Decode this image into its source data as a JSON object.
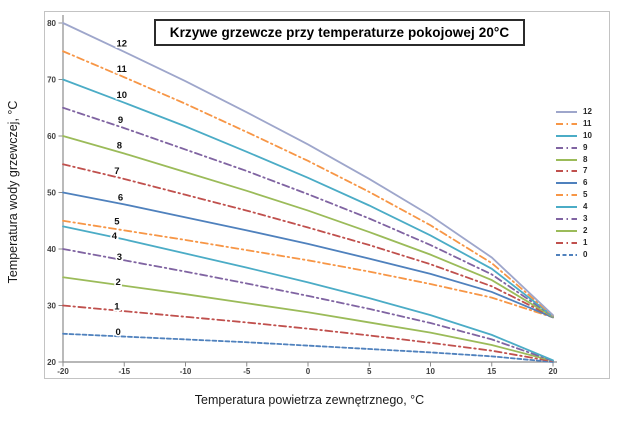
{
  "chart_data": {
    "type": "line",
    "title": "Krzywe grzewcze przy temperaturze pokojowej 20°C",
    "xlabel": "Temperatura powietrza zewnętrznego, °C",
    "ylabel": "Temperatura wody grzewczej, °C",
    "grid": false,
    "legend_position": "right",
    "xlim": [
      -20,
      20
    ],
    "ylim": [
      20,
      80
    ],
    "x_ticks": [
      -20,
      -15,
      -10,
      -5,
      0,
      5,
      10,
      15,
      20
    ],
    "y_ticks": [
      20,
      30,
      40,
      50,
      60,
      70,
      80
    ],
    "x": [
      -20,
      -15,
      -10,
      -5,
      0,
      5,
      10,
      15,
      20
    ],
    "series": [
      {
        "name": "12",
        "color": "#9EA6CB",
        "style": "solid",
        "label_pos": [
          -15.2,
          76.4
        ],
        "values": [
          80,
          74.9,
          69.7,
          64.2,
          58.5,
          52.4,
          45.9,
          38.5,
          28.3
        ]
      },
      {
        "name": "11",
        "color": "#F79646",
        "style": "dashdot",
        "label_pos": [
          -15.2,
          71.9
        ],
        "values": [
          75,
          70.4,
          65.7,
          60.7,
          55.6,
          50.1,
          44.2,
          37.5,
          28.2
        ]
      },
      {
        "name": "10",
        "color": "#4BACC6",
        "style": "solid",
        "label_pos": [
          -15.2,
          67.3
        ],
        "values": [
          70,
          65.9,
          61.7,
          57.2,
          52.6,
          47.7,
          42.4,
          36.5,
          28.1
        ]
      },
      {
        "name": "9",
        "color": "#8064A2",
        "style": "dashdot",
        "label_pos": [
          -15.3,
          62.8
        ],
        "values": [
          65,
          61.4,
          57.6,
          53.8,
          49.7,
          45.4,
          40.7,
          35.5,
          28.1
        ]
      },
      {
        "name": "8",
        "color": "#9BBB59",
        "style": "solid",
        "label_pos": [
          -15.4,
          58.3
        ],
        "values": [
          60,
          56.9,
          53.6,
          50.3,
          46.8,
          43.0,
          39.0,
          34.5,
          28.0
        ]
      },
      {
        "name": "7",
        "color": "#C0504D",
        "style": "dashdot",
        "label_pos": [
          -15.6,
          53.8
        ],
        "values": [
          55,
          52.4,
          49.6,
          46.8,
          43.8,
          40.7,
          37.3,
          33.4,
          28.0
        ]
      },
      {
        "name": "6",
        "color": "#4F81BD",
        "style": "solid",
        "label_pos": [
          -15.3,
          49.1
        ],
        "values": [
          50,
          47.9,
          45.6,
          43.3,
          40.9,
          38.3,
          35.6,
          32.4,
          27.9
        ]
      },
      {
        "name": "5",
        "color": "#F79646",
        "style": "dashdot",
        "label_pos": [
          -15.6,
          44.9
        ],
        "values": [
          45,
          43.3,
          41.6,
          39.8,
          38.0,
          36.0,
          33.8,
          31.4,
          27.9
        ]
      },
      {
        "name": "4",
        "color": "#4BACC6",
        "style": "solid",
        "label_pos": [
          -15.8,
          42.3
        ],
        "values": [
          44,
          41.7,
          39.2,
          36.7,
          34.1,
          31.3,
          28.3,
          24.8,
          20.3
        ]
      },
      {
        "name": "3",
        "color": "#8064A2",
        "style": "dashdot",
        "label_pos": [
          -15.4,
          38.6
        ],
        "values": [
          40,
          38.0,
          36.0,
          33.9,
          31.7,
          29.4,
          26.9,
          24.0,
          20.2
        ]
      },
      {
        "name": "2",
        "color": "#9BBB59",
        "style": "solid",
        "label_pos": [
          -15.5,
          34.2
        ],
        "values": [
          35,
          33.5,
          32.0,
          30.4,
          28.8,
          27.0,
          25.2,
          23.0,
          20.2
        ]
      },
      {
        "name": "1",
        "color": "#C0504D",
        "style": "dashdot",
        "label_pos": [
          -15.6,
          29.8
        ],
        "values": [
          30,
          29.0,
          28.0,
          27.0,
          25.9,
          24.7,
          23.4,
          22.0,
          20.1
        ]
      },
      {
        "name": "0",
        "color": "#4F81BD",
        "style": "dashed",
        "label_pos": [
          -15.5,
          25.3
        ],
        "values": [
          25,
          24.5,
          24.0,
          23.5,
          22.9,
          22.3,
          21.7,
          21.0,
          20.0
        ]
      }
    ]
  },
  "style_hints": {
    "axis_color": "#8c8c8c",
    "tick_label_color": "#404040",
    "curve_label_color": "#111111"
  }
}
